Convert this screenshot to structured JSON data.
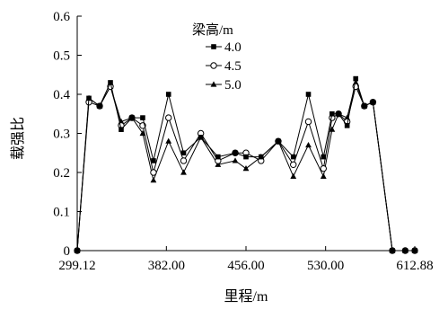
{
  "chart_data": {
    "type": "line",
    "title": "",
    "xlabel": "里程/m",
    "ylabel": "载强比",
    "xlim": [
      299.12,
      612.88
    ],
    "ylim": [
      0,
      0.6
    ],
    "x_ticks": [
      299.12,
      382.0,
      456.0,
      530.0,
      612.88
    ],
    "x_tick_labels": [
      "299.12",
      "382.00",
      "456.00",
      "530.00",
      "612.88"
    ],
    "y_ticks": [
      0,
      0.1,
      0.2,
      0.3,
      0.4,
      0.5,
      0.6
    ],
    "y_tick_labels": [
      "0",
      "0.1",
      "0.2",
      "0.3",
      "0.4",
      "0.5",
      "0.6"
    ],
    "grid": false,
    "legend": {
      "title": "梁高/m",
      "placement": "top-center"
    },
    "x": [
      299.12,
      310.0,
      320.0,
      330.0,
      340.0,
      350.0,
      360.0,
      370.0,
      384.0,
      398.0,
      414.0,
      430.0,
      446.0,
      456.0,
      470.0,
      486.0,
      500.0,
      514.0,
      528.0,
      536.0,
      542.0,
      550.0,
      558.0,
      566.0,
      574.0,
      592.0,
      604.0,
      612.88
    ],
    "series": [
      {
        "name": "4.0",
        "marker": "filled-square",
        "values": [
          0.0,
          0.39,
          0.37,
          0.43,
          0.31,
          0.34,
          0.34,
          0.23,
          0.4,
          0.25,
          0.29,
          0.24,
          0.25,
          0.24,
          0.24,
          0.28,
          0.24,
          0.4,
          0.24,
          0.35,
          0.35,
          0.32,
          0.44,
          0.37,
          0.38,
          0.0,
          0.0,
          0.0
        ]
      },
      {
        "name": "4.5",
        "marker": "open-circle",
        "values": [
          0.0,
          0.38,
          0.37,
          0.42,
          0.32,
          0.34,
          0.32,
          0.2,
          0.34,
          0.23,
          0.3,
          0.23,
          0.25,
          0.25,
          0.23,
          0.28,
          0.22,
          0.33,
          0.21,
          0.34,
          0.35,
          0.33,
          0.42,
          0.37,
          0.38,
          0.0,
          0.0,
          0.0
        ]
      },
      {
        "name": "5.0",
        "marker": "filled-triangle",
        "values": [
          0.0,
          0.39,
          0.37,
          0.42,
          0.33,
          0.34,
          0.3,
          0.18,
          0.28,
          0.2,
          0.29,
          0.22,
          0.23,
          0.21,
          0.24,
          0.28,
          0.19,
          0.27,
          0.19,
          0.31,
          0.35,
          0.34,
          0.43,
          0.37,
          0.38,
          0.0,
          0.0,
          0.0
        ]
      }
    ]
  }
}
